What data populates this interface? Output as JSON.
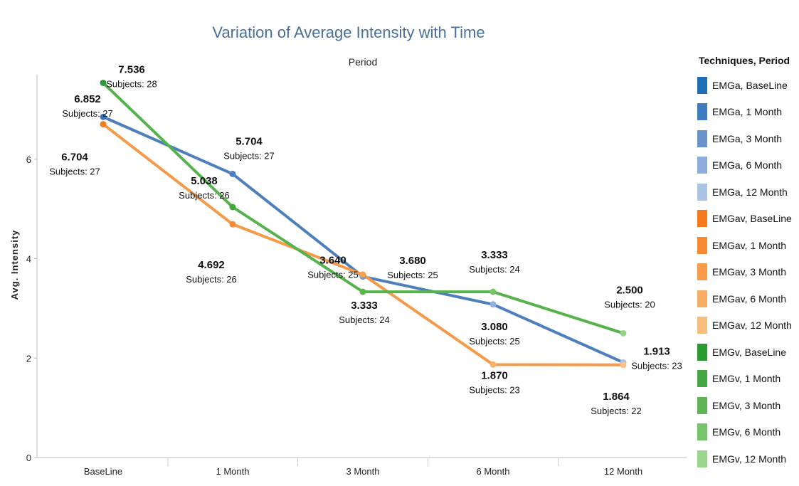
{
  "chart_data": {
    "type": "line",
    "title": "Variation of Average Intensity with Time",
    "header": "Period",
    "xlabel": "",
    "ylabel": "Avg. Intensity",
    "categories": [
      "BaseLine",
      "1 Month",
      "3 Month",
      "6 Month",
      "12 Month"
    ],
    "yticks": [
      "0",
      "2",
      "4",
      "6"
    ],
    "ylim": [
      0,
      7.7
    ],
    "legend_position": "right",
    "legend_title": "Techniques, Period",
    "series": [
      {
        "key": "EMGa",
        "color": "#4d7fbd",
        "values": [
          6.852,
          5.704,
          3.64,
          3.08,
          1.913
        ],
        "value_labels": [
          "6.852",
          "5.704",
          "3.640",
          "3.080",
          "1.913"
        ],
        "subject_labels": [
          "Subjects: 27",
          "Subjects: 27",
          "Subjects: 25",
          "Subjects: 25",
          "Subjects: 23"
        ],
        "point_colors": [
          "#3a73b5",
          "#4a7fc0",
          "#7095c9",
          "#92aede",
          "#aac3e6"
        ]
      },
      {
        "key": "EMGav",
        "color": "#f59a48",
        "values": [
          6.704,
          4.692,
          3.68,
          1.87,
          1.864
        ],
        "value_labels": [
          "6.704",
          "4.692",
          "3.680",
          "1.870",
          "1.864"
        ],
        "subject_labels": [
          "Subjects: 27",
          "Subjects: 26",
          "Subjects: 25",
          "Subjects: 23",
          "Subjects: 22"
        ],
        "point_colors": [
          "#f47c20",
          "#f58a35",
          "#f6a050",
          "#f7b06a",
          "#f9c08a"
        ]
      },
      {
        "key": "EMGv",
        "color": "#55b24c",
        "values": [
          7.536,
          5.038,
          3.333,
          3.333,
          2.5
        ],
        "value_labels": [
          "7.536",
          "5.038",
          "3.333",
          "3.333",
          "2.500"
        ],
        "subject_labels": [
          "Subjects: 28",
          "Subjects: 26",
          "Subjects: 24",
          "Subjects: 24",
          "Subjects: 20"
        ],
        "point_colors": [
          "#2e9b36",
          "#44a63f",
          "#5cb352",
          "#78c36a",
          "#98d488"
        ]
      }
    ],
    "legend": [
      {
        "label": "EMGa, BaseLine",
        "color": "#1f6fb4"
      },
      {
        "label": "EMGa, 1 Month",
        "color": "#3f7cc0"
      },
      {
        "label": "EMGa, 3 Month",
        "color": "#6a93c9"
      },
      {
        "label": "EMGa, 6 Month",
        "color": "#8eaddc"
      },
      {
        "label": "EMGa, 12 Month",
        "color": "#aac4e6"
      },
      {
        "label": "EMGav, BaseLine",
        "color": "#f47a1d"
      },
      {
        "label": "EMGav, 1 Month",
        "color": "#f58a33"
      },
      {
        "label": "EMGav, 3 Month",
        "color": "#f69c4b"
      },
      {
        "label": "EMGav, 6 Month",
        "color": "#f7ad63"
      },
      {
        "label": "EMGav, 12 Month",
        "color": "#f8bc7c"
      },
      {
        "label": "EMGv, BaseLine",
        "color": "#2a9b2e"
      },
      {
        "label": "EMGv, 1 Month",
        "color": "#45a844"
      },
      {
        "label": "EMGv, 3 Month",
        "color": "#5fb555"
      },
      {
        "label": "EMGv, 6 Month",
        "color": "#78c46a"
      },
      {
        "label": "EMGv, 12 Month",
        "color": "#9bd68a"
      }
    ]
  }
}
